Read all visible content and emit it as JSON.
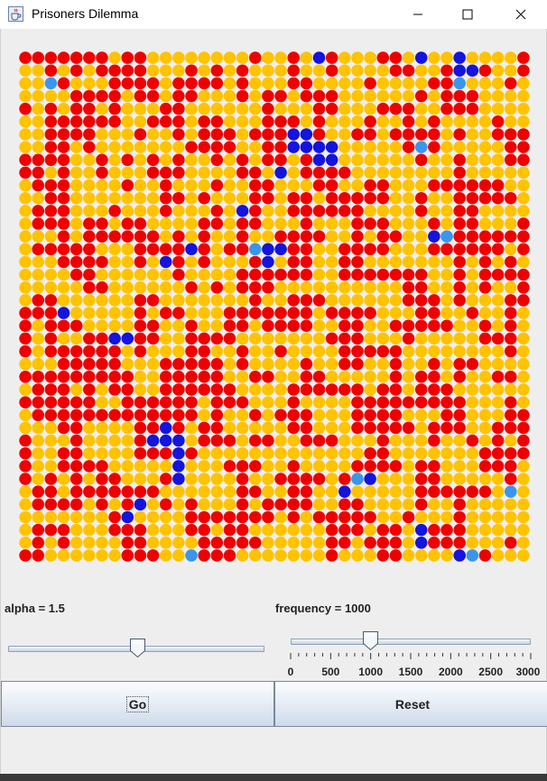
{
  "window": {
    "title": "Prisoners Dilemma",
    "icon": "java-cup-icon",
    "controls": [
      "minimize-icon",
      "maximize-icon",
      "close-icon"
    ]
  },
  "grid": {
    "rows": 40,
    "cols": 40,
    "colors": {
      "defector": "#ee0000",
      "cooperator": "#ffc300",
      "blue": "#1414dc",
      "light_blue": "#3a96ea"
    },
    "blue_cells": [
      [
        0,
        23
      ],
      [
        0,
        31
      ],
      [
        0,
        34
      ],
      [
        1,
        34
      ],
      [
        1,
        35
      ],
      [
        6,
        21
      ],
      [
        6,
        22
      ],
      [
        7,
        21
      ],
      [
        7,
        22
      ],
      [
        7,
        23
      ],
      [
        7,
        24
      ],
      [
        8,
        23
      ],
      [
        8,
        24
      ],
      [
        9,
        20
      ],
      [
        12,
        17
      ],
      [
        14,
        32
      ],
      [
        15,
        13
      ],
      [
        15,
        19
      ],
      [
        15,
        20
      ],
      [
        16,
        11
      ],
      [
        16,
        19
      ],
      [
        20,
        3
      ],
      [
        22,
        7
      ],
      [
        22,
        8
      ],
      [
        29,
        11
      ],
      [
        30,
        10
      ],
      [
        30,
        11
      ],
      [
        30,
        12
      ],
      [
        31,
        12
      ],
      [
        32,
        12
      ],
      [
        33,
        12
      ],
      [
        33,
        27
      ],
      [
        34,
        25
      ],
      [
        35,
        9
      ],
      [
        36,
        8
      ],
      [
        37,
        31
      ],
      [
        38,
        31
      ],
      [
        39,
        13
      ],
      [
        39,
        34
      ],
      [
        39,
        35
      ]
    ],
    "light_blue_cells": [
      [
        2,
        2
      ],
      [
        2,
        34
      ],
      [
        7,
        31
      ],
      [
        14,
        33
      ],
      [
        15,
        18
      ],
      [
        33,
        26
      ],
      [
        34,
        38
      ],
      [
        39,
        13
      ],
      [
        39,
        35
      ]
    ]
  },
  "alpha": {
    "label": "alpha = 1.5",
    "value": 1.5
  },
  "frequency": {
    "label": "frequency = 1000",
    "value": 1000,
    "min": 0,
    "max": 3000,
    "ticks": [
      "0",
      "500",
      "1000",
      "1500",
      "2000",
      "2500",
      "3000"
    ]
  },
  "buttons": {
    "go": "Go",
    "reset": "Reset"
  }
}
